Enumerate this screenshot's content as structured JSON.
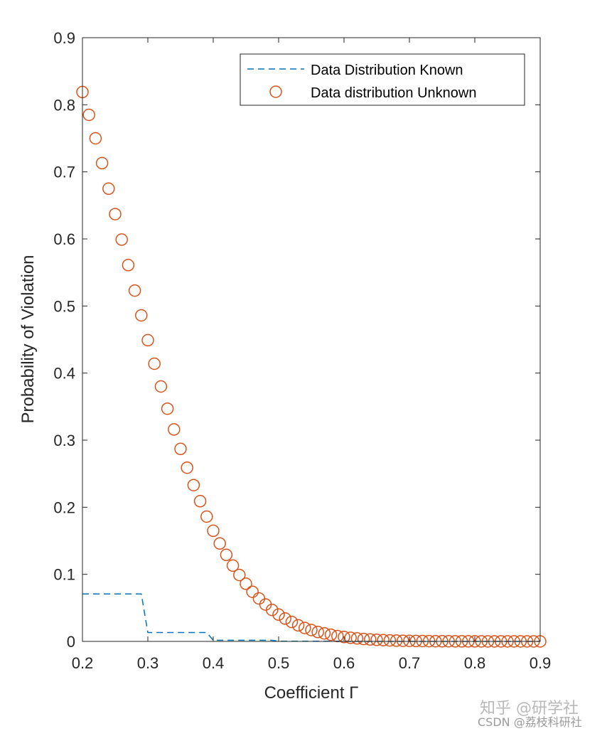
{
  "chart_data": {
    "type": "line",
    "xlabel": "Coefficient Γ",
    "ylabel": "Probability of Violation",
    "xlim": [
      0.2,
      0.9
    ],
    "ylim": [
      0,
      0.9
    ],
    "xticks": [
      0.2,
      0.3,
      0.4,
      0.5,
      0.6,
      0.7,
      0.8,
      0.9
    ],
    "yticks": [
      0,
      0.1,
      0.2,
      0.3,
      0.4,
      0.5,
      0.6,
      0.7,
      0.8,
      0.9
    ],
    "xtick_labels": [
      "0.2",
      "0.3",
      "0.4",
      "0.5",
      "0.6",
      "0.7",
      "0.8",
      "0.9"
    ],
    "ytick_labels": [
      "0",
      "0.1",
      "0.2",
      "0.3",
      "0.4",
      "0.5",
      "0.6",
      "0.7",
      "0.8",
      "0.9"
    ],
    "grid": false,
    "legend_position": "top-right",
    "series": [
      {
        "name": "Data Distribution Known",
        "style": "dashed-line",
        "color": "#0072BD",
        "x": [
          0.2,
          0.28,
          0.29,
          0.3,
          0.39,
          0.4,
          0.49,
          0.5,
          0.59,
          0.6,
          0.9
        ],
        "y": [
          0.0707,
          0.0707,
          0.0707,
          0.0132,
          0.0132,
          0.0017,
          0.0017,
          0.0002,
          0.0002,
          0.0,
          0.0
        ]
      },
      {
        "name": "Data distribution Unknown",
        "style": "open-circle-markers",
        "color": "#D95319",
        "x": [
          0.2,
          0.21,
          0.22,
          0.23,
          0.24,
          0.25,
          0.26,
          0.27,
          0.28,
          0.29,
          0.3,
          0.31,
          0.32,
          0.33,
          0.34,
          0.35,
          0.36,
          0.37,
          0.38,
          0.39,
          0.4,
          0.41,
          0.42,
          0.43,
          0.44,
          0.45,
          0.46,
          0.47,
          0.48,
          0.49,
          0.5,
          0.51,
          0.52,
          0.53,
          0.54,
          0.55,
          0.56,
          0.57,
          0.58,
          0.59,
          0.6,
          0.61,
          0.62,
          0.63,
          0.64,
          0.65,
          0.66,
          0.67,
          0.68,
          0.69,
          0.7,
          0.71,
          0.72,
          0.73,
          0.74,
          0.75,
          0.76,
          0.77,
          0.78,
          0.79,
          0.8,
          0.81,
          0.82,
          0.83,
          0.84,
          0.85,
          0.86,
          0.87,
          0.88,
          0.89,
          0.9
        ],
        "y": [
          0.819,
          0.785,
          0.75,
          0.713,
          0.675,
          0.637,
          0.599,
          0.561,
          0.523,
          0.486,
          0.449,
          0.414,
          0.38,
          0.347,
          0.316,
          0.287,
          0.259,
          0.233,
          0.209,
          0.186,
          0.165,
          0.146,
          0.129,
          0.113,
          0.099,
          0.086,
          0.074,
          0.064,
          0.055,
          0.047,
          0.04,
          0.034,
          0.029,
          0.024,
          0.02,
          0.017,
          0.014,
          0.012,
          0.01,
          0.008,
          0.0066,
          0.0054,
          0.0044,
          0.0036,
          0.0029,
          0.0023,
          0.0019,
          0.0015,
          0.0012,
          0.001,
          0.0008,
          0.0006,
          0.0005,
          0.0004,
          0.0003,
          0.0002,
          0.0002,
          0.0001,
          0.0001,
          0.0001,
          0.0001,
          0.0,
          0.0,
          0.0,
          0.0,
          0.0,
          0.0,
          0.0,
          0.0,
          0.0,
          0.0
        ]
      }
    ]
  },
  "watermark": {
    "line1": "知乎 @研学社",
    "line2": "CSDN @荔枝科研社"
  }
}
